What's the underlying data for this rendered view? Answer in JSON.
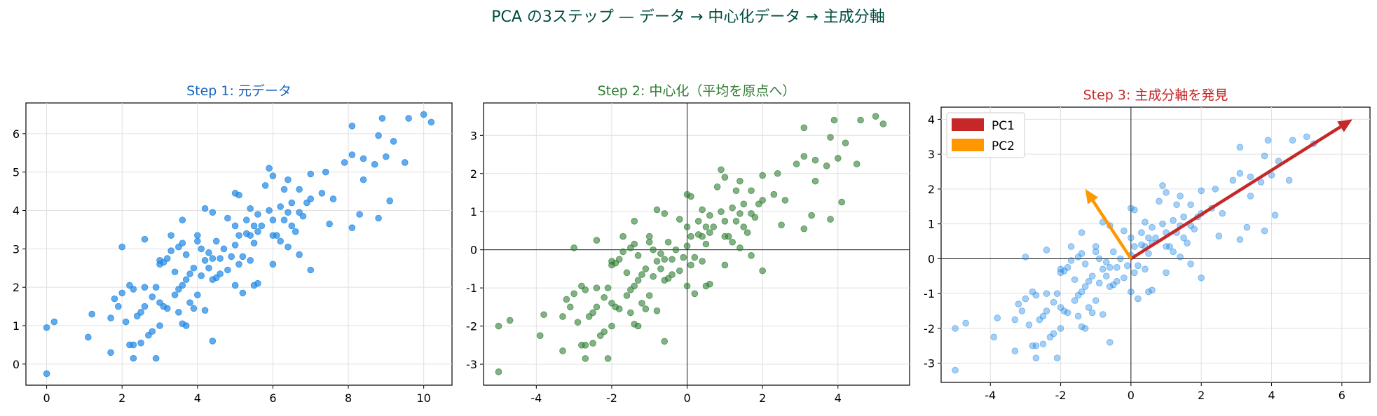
{
  "suptitle": "PCA の3ステップ — データ → 中心化データ → 主成分軸",
  "colors": {
    "suptitle": "#004d40",
    "panel1": "#1565c0",
    "panel2": "#2e7d32",
    "panel3": "#c62828",
    "blue_points": "#1e88e5",
    "green_points": "#2e7d32",
    "pc1": "#c62828",
    "pc2": "#ff9800",
    "grid": "#e0e0e0"
  },
  "chart_data": [
    {
      "type": "scatter",
      "title": "Step 1: 元データ",
      "xlim": [
        -0.55,
        10.75
      ],
      "ylim": [
        -0.55,
        6.8
      ],
      "xticks": [
        0,
        2,
        4,
        6,
        8,
        10
      ],
      "yticks": [
        0,
        1,
        2,
        3,
        4,
        5,
        6
      ],
      "grid": true,
      "points": [
        [
          0.0,
          -0.25
        ],
        [
          0.0,
          0.95
        ],
        [
          0.2,
          1.1
        ],
        [
          1.1,
          0.7
        ],
        [
          1.2,
          1.3
        ],
        [
          1.7,
          0.3
        ],
        [
          1.7,
          1.2
        ],
        [
          1.8,
          1.7
        ],
        [
          1.9,
          1.5
        ],
        [
          2.0,
          1.85
        ],
        [
          2.0,
          3.05
        ],
        [
          2.1,
          1.1
        ],
        [
          2.2,
          0.5
        ],
        [
          2.2,
          2.05
        ],
        [
          2.3,
          0.15
        ],
        [
          2.3,
          0.5
        ],
        [
          2.3,
          1.95
        ],
        [
          2.4,
          1.25
        ],
        [
          2.5,
          1.35
        ],
        [
          2.5,
          0.55
        ],
        [
          2.6,
          1.5
        ],
        [
          2.6,
          2.0
        ],
        [
          2.6,
          3.25
        ],
        [
          2.7,
          0.75
        ],
        [
          2.8,
          0.85
        ],
        [
          2.8,
          1.75
        ],
        [
          2.9,
          0.15
        ],
        [
          2.9,
          2.0
        ],
        [
          3.0,
          1.0
        ],
        [
          3.0,
          1.6
        ],
        [
          3.0,
          2.6
        ],
        [
          3.0,
          2.7
        ],
        [
          3.1,
          1.5
        ],
        [
          3.1,
          2.65
        ],
        [
          3.2,
          1.45
        ],
        [
          3.2,
          2.75
        ],
        [
          3.3,
          2.95
        ],
        [
          3.3,
          3.35
        ],
        [
          3.4,
          1.8
        ],
        [
          3.4,
          2.4
        ],
        [
          3.5,
          1.35
        ],
        [
          3.5,
          1.95
        ],
        [
          3.5,
          3.05
        ],
        [
          3.6,
          1.05
        ],
        [
          3.6,
          2.05
        ],
        [
          3.6,
          3.15
        ],
        [
          3.6,
          3.75
        ],
        [
          3.7,
          1.0
        ],
        [
          3.7,
          2.2
        ],
        [
          3.7,
          2.85
        ],
        [
          3.8,
          1.6
        ],
        [
          3.8,
          2.35
        ],
        [
          3.9,
          1.45
        ],
        [
          3.9,
          2.5
        ],
        [
          4.0,
          1.8
        ],
        [
          4.0,
          3.2
        ],
        [
          4.0,
          3.35
        ],
        [
          4.1,
          2.3
        ],
        [
          4.1,
          3.0
        ],
        [
          4.2,
          1.4
        ],
        [
          4.2,
          2.7
        ],
        [
          4.2,
          4.05
        ],
        [
          4.3,
          2.5
        ],
        [
          4.3,
          2.9
        ],
        [
          4.4,
          2.2
        ],
        [
          4.4,
          2.75
        ],
        [
          4.4,
          3.95
        ],
        [
          4.4,
          0.6
        ],
        [
          4.5,
          2.25
        ],
        [
          4.5,
          3.2
        ],
        [
          4.6,
          2.35
        ],
        [
          4.6,
          2.75
        ],
        [
          4.7,
          3.0
        ],
        [
          4.8,
          2.45
        ],
        [
          4.8,
          3.8
        ],
        [
          4.9,
          2.8
        ],
        [
          5.0,
          2.05
        ],
        [
          5.0,
          3.1
        ],
        [
          5.0,
          3.6
        ],
        [
          5.0,
          4.45
        ],
        [
          5.1,
          2.6
        ],
        [
          5.1,
          3.35
        ],
        [
          5.1,
          4.4
        ],
        [
          5.2,
          1.85
        ],
        [
          5.2,
          2.8
        ],
        [
          5.3,
          3.4
        ],
        [
          5.3,
          3.75
        ],
        [
          5.4,
          2.7
        ],
        [
          5.4,
          3.35
        ],
        [
          5.4,
          4.05
        ],
        [
          5.5,
          2.05
        ],
        [
          5.5,
          3.15
        ],
        [
          5.5,
          3.6
        ],
        [
          5.6,
          2.1
        ],
        [
          5.6,
          3.45
        ],
        [
          5.6,
          3.9
        ],
        [
          5.7,
          3.6
        ],
        [
          5.8,
          4.65
        ],
        [
          5.9,
          4.0
        ],
        [
          5.9,
          5.1
        ],
        [
          6.0,
          2.6
        ],
        [
          6.0,
          3.35
        ],
        [
          6.0,
          3.75
        ],
        [
          6.0,
          4.9
        ],
        [
          6.1,
          3.35
        ],
        [
          6.2,
          3.2
        ],
        [
          6.2,
          4.1
        ],
        [
          6.3,
          3.75
        ],
        [
          6.3,
          4.55
        ],
        [
          6.4,
          3.05
        ],
        [
          6.4,
          3.95
        ],
        [
          6.4,
          4.8
        ],
        [
          6.5,
          3.6
        ],
        [
          6.5,
          4.2
        ],
        [
          6.6,
          3.45
        ],
        [
          6.7,
          2.85
        ],
        [
          6.7,
          3.95
        ],
        [
          6.7,
          4.55
        ],
        [
          6.8,
          3.85
        ],
        [
          6.9,
          4.2
        ],
        [
          7.0,
          2.45
        ],
        [
          7.0,
          4.3
        ],
        [
          7.0,
          4.95
        ],
        [
          7.3,
          4.45
        ],
        [
          7.4,
          5.0
        ],
        [
          7.5,
          3.65
        ],
        [
          7.6,
          4.3
        ],
        [
          7.9,
          5.25
        ],
        [
          8.1,
          3.55
        ],
        [
          8.1,
          5.45
        ],
        [
          8.1,
          6.2
        ],
        [
          8.3,
          3.9
        ],
        [
          8.4,
          4.8
        ],
        [
          8.4,
          5.35
        ],
        [
          8.7,
          5.2
        ],
        [
          8.8,
          3.8
        ],
        [
          8.8,
          5.95
        ],
        [
          8.9,
          6.4
        ],
        [
          9.0,
          5.4
        ],
        [
          9.1,
          4.25
        ],
        [
          9.2,
          5.8
        ],
        [
          9.5,
          5.25
        ],
        [
          9.6,
          6.4
        ],
        [
          10.0,
          6.5
        ],
        [
          10.2,
          6.3
        ]
      ]
    },
    {
      "type": "scatter",
      "title": "Step 2: 中心化（平均を原点へ）",
      "xlim": [
        -5.4,
        5.9
      ],
      "ylim": [
        -3.55,
        3.85
      ],
      "xticks": [
        -4,
        -2,
        0,
        2,
        4
      ],
      "yticks": [
        -3,
        -2,
        -1,
        0,
        1,
        2,
        3
      ],
      "grid": true,
      "axes_at_origin": true,
      "points": [
        [
          -5.0,
          -3.2
        ],
        [
          -5.0,
          -2.0
        ],
        [
          -4.7,
          -1.85
        ],
        [
          -3.9,
          -2.25
        ],
        [
          -3.8,
          -1.7
        ],
        [
          -3.3,
          -2.65
        ],
        [
          -3.3,
          -1.75
        ],
        [
          -3.2,
          -1.3
        ],
        [
          -3.1,
          -1.5
        ],
        [
          -3.0,
          -1.15
        ],
        [
          -3.0,
          0.05
        ],
        [
          -2.9,
          -1.9
        ],
        [
          -2.8,
          -2.5
        ],
        [
          -2.8,
          -0.95
        ],
        [
          -2.7,
          -2.85
        ],
        [
          -2.7,
          -2.5
        ],
        [
          -2.7,
          -1.05
        ],
        [
          -2.6,
          -1.75
        ],
        [
          -2.5,
          -1.65
        ],
        [
          -2.5,
          -2.45
        ],
        [
          -2.4,
          -1.5
        ],
        [
          -2.4,
          -1.0
        ],
        [
          -2.4,
          0.25
        ],
        [
          -2.3,
          -2.25
        ],
        [
          -2.2,
          -2.15
        ],
        [
          -2.2,
          -1.25
        ],
        [
          -2.1,
          -2.85
        ],
        [
          -2.1,
          -1.0
        ],
        [
          -2.0,
          -2.0
        ],
        [
          -2.0,
          -1.4
        ],
        [
          -2.0,
          -0.4
        ],
        [
          -2.0,
          -0.3
        ],
        [
          -1.9,
          -1.5
        ],
        [
          -1.9,
          -0.35
        ],
        [
          -1.8,
          -1.55
        ],
        [
          -1.8,
          -0.25
        ],
        [
          -1.7,
          -0.05
        ],
        [
          -1.7,
          0.35
        ],
        [
          -1.6,
          -1.2
        ],
        [
          -1.6,
          -0.6
        ],
        [
          -1.5,
          -1.65
        ],
        [
          -1.5,
          -1.05
        ],
        [
          -1.5,
          0.05
        ],
        [
          -1.4,
          -1.95
        ],
        [
          -1.4,
          -0.95
        ],
        [
          -1.4,
          0.15
        ],
        [
          -1.4,
          0.75
        ],
        [
          -1.3,
          -2.0
        ],
        [
          -1.3,
          -0.8
        ],
        [
          -1.3,
          -0.15
        ],
        [
          -1.2,
          -1.4
        ],
        [
          -1.2,
          -0.65
        ],
        [
          -1.1,
          -1.55
        ],
        [
          -1.1,
          -0.5
        ],
        [
          -1.0,
          -1.2
        ],
        [
          -1.0,
          0.2
        ],
        [
          -1.0,
          0.35
        ],
        [
          -0.9,
          -0.7
        ],
        [
          -0.9,
          0.0
        ],
        [
          -0.8,
          -1.6
        ],
        [
          -0.8,
          -0.3
        ],
        [
          -0.8,
          1.05
        ],
        [
          -0.7,
          -0.5
        ],
        [
          -0.7,
          -0.1
        ],
        [
          -0.6,
          -0.8
        ],
        [
          -0.6,
          -0.25
        ],
        [
          -0.6,
          0.95
        ],
        [
          -0.6,
          -2.4
        ],
        [
          -0.5,
          -0.75
        ],
        [
          -0.5,
          0.2
        ],
        [
          -0.4,
          -0.65
        ],
        [
          -0.4,
          -0.25
        ],
        [
          -0.3,
          0.0
        ],
        [
          -0.2,
          -0.55
        ],
        [
          -0.2,
          0.8
        ],
        [
          -0.1,
          -0.2
        ],
        [
          0.0,
          -0.95
        ],
        [
          0.0,
          0.1
        ],
        [
          0.0,
          0.6
        ],
        [
          0.0,
          1.45
        ],
        [
          0.1,
          -0.4
        ],
        [
          0.1,
          0.35
        ],
        [
          0.1,
          1.4
        ],
        [
          0.2,
          -1.15
        ],
        [
          0.2,
          -0.2
        ],
        [
          0.3,
          0.4
        ],
        [
          0.3,
          0.75
        ],
        [
          0.4,
          -0.3
        ],
        [
          0.4,
          0.35
        ],
        [
          0.4,
          1.05
        ],
        [
          0.5,
          -0.95
        ],
        [
          0.5,
          0.15
        ],
        [
          0.5,
          0.6
        ],
        [
          0.6,
          -0.9
        ],
        [
          0.6,
          0.45
        ],
        [
          0.6,
          0.9
        ],
        [
          0.7,
          0.6
        ],
        [
          0.8,
          1.65
        ],
        [
          0.9,
          1.0
        ],
        [
          0.9,
          2.1
        ],
        [
          1.0,
          -0.4
        ],
        [
          1.0,
          0.35
        ],
        [
          1.0,
          0.75
        ],
        [
          1.0,
          1.9
        ],
        [
          1.1,
          0.35
        ],
        [
          1.2,
          0.2
        ],
        [
          1.2,
          1.1
        ],
        [
          1.3,
          0.75
        ],
        [
          1.3,
          1.55
        ],
        [
          1.4,
          0.05
        ],
        [
          1.4,
          0.95
        ],
        [
          1.4,
          1.8
        ],
        [
          1.5,
          0.6
        ],
        [
          1.5,
          1.2
        ],
        [
          1.6,
          0.45
        ],
        [
          1.7,
          -0.15
        ],
        [
          1.7,
          0.95
        ],
        [
          1.7,
          1.55
        ],
        [
          1.8,
          0.85
        ],
        [
          1.9,
          1.2
        ],
        [
          2.0,
          -0.55
        ],
        [
          2.0,
          1.3
        ],
        [
          2.0,
          1.95
        ],
        [
          2.3,
          1.45
        ],
        [
          2.4,
          2.0
        ],
        [
          2.5,
          0.65
        ],
        [
          2.6,
          1.3
        ],
        [
          2.9,
          2.25
        ],
        [
          3.1,
          0.55
        ],
        [
          3.1,
          2.45
        ],
        [
          3.1,
          3.2
        ],
        [
          3.3,
          0.9
        ],
        [
          3.4,
          1.8
        ],
        [
          3.4,
          2.35
        ],
        [
          3.7,
          2.2
        ],
        [
          3.8,
          0.8
        ],
        [
          3.8,
          2.95
        ],
        [
          3.9,
          3.4
        ],
        [
          4.0,
          2.4
        ],
        [
          4.1,
          1.25
        ],
        [
          4.2,
          2.8
        ],
        [
          4.5,
          2.25
        ],
        [
          4.6,
          3.4
        ],
        [
          5.0,
          3.5
        ],
        [
          5.2,
          3.3
        ]
      ]
    },
    {
      "type": "scatter",
      "title": "Step 3: 主成分軸を発見",
      "xlim": [
        -5.4,
        6.8
      ],
      "ylim": [
        -3.55,
        4.35
      ],
      "xticks": [
        -4,
        -2,
        0,
        2,
        4,
        6
      ],
      "yticks": [
        -3,
        -2,
        -1,
        0,
        1,
        2,
        3,
        4
      ],
      "grid": true,
      "axes_at_origin": true,
      "legend_position": "top-left",
      "arrows": [
        {
          "name": "PC1",
          "dx": 6.3,
          "dy": 4.0
        },
        {
          "name": "PC2",
          "dx": -1.3,
          "dy": 2.0
        }
      ],
      "points": "same as Step 2"
    }
  ]
}
